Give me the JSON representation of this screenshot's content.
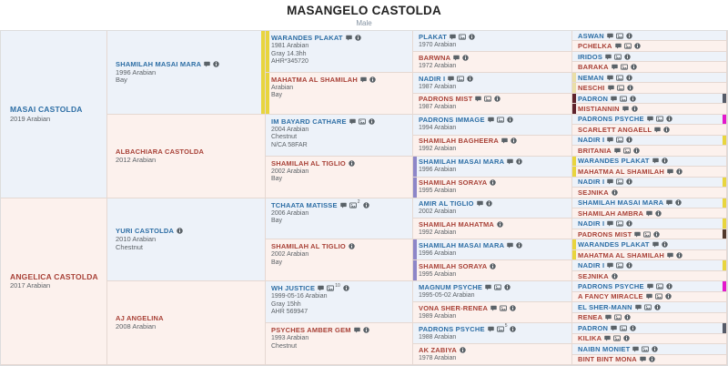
{
  "header": {
    "title": "MASANGELO CASTOLDA",
    "subtitle": "Male"
  },
  "colors": {
    "male_bg": "#edf2f9",
    "female_bg": "#fcf1ed",
    "male_name": "#2d6ea5",
    "female_name": "#a84137",
    "detail_text": "#5b6166",
    "icon_gray": "#5a6268",
    "stripes": {
      "yellow": "#e8d53e",
      "pale_yellow": "#eadfa8",
      "purple": "#8d86c8",
      "maroon": "#5e222b",
      "dark_gray": "#565b68",
      "dark_brown": "#53392b",
      "magenta": "#e318cc"
    }
  },
  "pedigree": {
    "columns": [
      {
        "generation": 1,
        "cells": [
          {
            "name": "MASAI CASTOLDA",
            "sex": "m",
            "details": [
              "2019 Arabian"
            ],
            "icons": []
          },
          {
            "name": "ANGELICA CASTOLDA",
            "sex": "f",
            "details": [
              "2017 Arabian"
            ],
            "icons": []
          }
        ]
      },
      {
        "generation": 2,
        "cells": [
          {
            "name": "SHAMILAH MASAI MARA",
            "sex": "m",
            "details": [
              "1996 Arabian",
              "Bay"
            ],
            "icons": [
              "chat",
              "info"
            ],
            "stripe_right": "yellow"
          },
          {
            "name": "ALBACHIARA CASTOLDA",
            "sex": "f",
            "details": [
              "2012 Arabian"
            ],
            "icons": []
          },
          {
            "name": "YURI CASTOLDA",
            "sex": "m",
            "details": [
              "2010 Arabian",
              "Chestnut"
            ],
            "icons": [
              "info"
            ]
          },
          {
            "name": "AJ ANGELINA",
            "sex": "f",
            "details": [
              "2008 Arabian"
            ],
            "icons": []
          }
        ]
      },
      {
        "generation": 3,
        "cells": [
          {
            "name": "WARANDES PLAKAT",
            "sex": "m",
            "details": [
              "1981 Arabian",
              "Gray 14.3hh",
              "AHR*345720"
            ],
            "icons": [
              "chat",
              "info"
            ],
            "stripe_left": "yellow"
          },
          {
            "name": "MAHATMA AL SHAMILAH",
            "sex": "f",
            "details": [
              "Arabian",
              "Bay"
            ],
            "icons": [
              "chat",
              "info"
            ],
            "stripe_left": "yellow"
          },
          {
            "name": "IM BAYARD CATHARE",
            "sex": "m",
            "details": [
              "2004 Arabian",
              "Chestnut",
              "N/CA 58FAR"
            ],
            "icons": [
              "chat",
              "image",
              "info"
            ]
          },
          {
            "name": "SHAMILAH AL TIGLIO",
            "sex": "f",
            "details": [
              "2002 Arabian",
              "Bay"
            ],
            "icons": [
              "info"
            ]
          },
          {
            "name": "TCHAATA MATISSE",
            "sex": "m",
            "details": [
              "2006 Arabian",
              "Bay"
            ],
            "icons": [
              "chat",
              "image",
              "info"
            ],
            "image_sup": "2"
          },
          {
            "name": "SHAMILAH AL TIGLIO",
            "sex": "f",
            "details": [
              "2002 Arabian",
              "Bay"
            ],
            "icons": [
              "info"
            ]
          },
          {
            "name": "WH JUSTICE",
            "sex": "m",
            "details": [
              "1999-05-16 Arabian",
              "Gray 15hh",
              "AHR 569947"
            ],
            "icons": [
              "chat",
              "image",
              "info"
            ],
            "image_sup": "10"
          },
          {
            "name": "PSYCHES AMBER GEM",
            "sex": "f",
            "details": [
              "1993 Arabian",
              "Chestnut"
            ],
            "icons": [
              "chat",
              "info"
            ]
          }
        ]
      },
      {
        "generation": 4,
        "cells": [
          {
            "name": "PLAKAT",
            "sex": "m",
            "details": [
              "1970 Arabian"
            ],
            "icons": [
              "chat",
              "image",
              "info"
            ]
          },
          {
            "name": "BARWNA",
            "sex": "f",
            "details": [
              "1972 Arabian"
            ],
            "icons": [
              "chat",
              "info"
            ]
          },
          {
            "name": "NADIR I",
            "sex": "m",
            "details": [
              "1987 Arabian"
            ],
            "icons": [
              "chat",
              "image",
              "info"
            ]
          },
          {
            "name": "PADRONS MIST",
            "sex": "f",
            "details": [
              "1987 Arabian"
            ],
            "icons": [
              "chat",
              "image",
              "info"
            ]
          },
          {
            "name": "PADRONS IMMAGE",
            "sex": "m",
            "details": [
              "1994 Arabian"
            ],
            "icons": [
              "chat",
              "image",
              "info"
            ]
          },
          {
            "name": "SHAMILAH BAGHEERA",
            "sex": "f",
            "details": [
              "1992 Arabian"
            ],
            "icons": [
              "chat",
              "info"
            ]
          },
          {
            "name": "SHAMILAH MASAI MARA",
            "sex": "m",
            "details": [
              "1996 Arabian"
            ],
            "icons": [
              "chat",
              "info"
            ],
            "stripe_left": "purple"
          },
          {
            "name": "SHAMILAH SORAYA",
            "sex": "f",
            "details": [
              "1995 Arabian"
            ],
            "icons": [
              "info"
            ],
            "stripe_left": "purple"
          },
          {
            "name": "AMIR AL TIGLIO",
            "sex": "m",
            "details": [
              "2002 Arabian"
            ],
            "icons": [
              "chat",
              "info"
            ]
          },
          {
            "name": "SHAMILAH MAHATMA",
            "sex": "f",
            "details": [
              "1992 Arabian"
            ],
            "icons": [
              "info"
            ]
          },
          {
            "name": "SHAMILAH MASAI MARA",
            "sex": "m",
            "details": [
              "1996 Arabian"
            ],
            "icons": [
              "chat",
              "info"
            ],
            "stripe_left": "purple"
          },
          {
            "name": "SHAMILAH SORAYA",
            "sex": "f",
            "details": [
              "1995 Arabian"
            ],
            "icons": [
              "info"
            ],
            "stripe_left": "purple"
          },
          {
            "name": "MAGNUM PSYCHE",
            "sex": "m",
            "details": [
              "1995-05-02 Arabian"
            ],
            "icons": [
              "chat",
              "image",
              "info"
            ]
          },
          {
            "name": "VONA SHER-RENEA",
            "sex": "f",
            "details": [
              "1989 Arabian"
            ],
            "icons": [
              "chat",
              "image",
              "info"
            ]
          },
          {
            "name": "PADRONS PSYCHE",
            "sex": "m",
            "details": [
              "1988 Arabian"
            ],
            "icons": [
              "chat",
              "image",
              "info"
            ],
            "image_sup": "5"
          },
          {
            "name": "AK ZABIYA",
            "sex": "f",
            "details": [
              "1978 Arabian"
            ],
            "icons": [
              "info"
            ]
          }
        ]
      },
      {
        "generation": 5,
        "cells": [
          {
            "name": "ASWAN",
            "sex": "m",
            "details": [],
            "icons": [
              "chat",
              "image",
              "info"
            ]
          },
          {
            "name": "PCHELKA",
            "sex": "f",
            "details": [],
            "icons": [
              "chat",
              "image",
              "info"
            ]
          },
          {
            "name": "IRIDOS",
            "sex": "m",
            "details": [],
            "icons": [
              "chat",
              "image",
              "info"
            ]
          },
          {
            "name": "BARAKA",
            "sex": "f",
            "details": [],
            "icons": [
              "chat",
              "image",
              "info"
            ]
          },
          {
            "name": "NEMAN",
            "sex": "m",
            "details": [],
            "icons": [
              "chat",
              "image",
              "info"
            ],
            "stripe_left": "pale_yellow"
          },
          {
            "name": "NESCHI",
            "sex": "f",
            "details": [],
            "icons": [
              "chat",
              "image",
              "info"
            ],
            "stripe_left": "pale_yellow"
          },
          {
            "name": "PADRON",
            "sex": "m",
            "details": [],
            "icons": [
              "chat",
              "image",
              "info"
            ],
            "stripe_left": "maroon",
            "stripe_right": "dark_gray"
          },
          {
            "name": "MISTIANNIN",
            "sex": "f",
            "details": [],
            "icons": [
              "chat",
              "info"
            ],
            "stripe_left": "maroon"
          },
          {
            "name": "PADRONS PSYCHE",
            "sex": "m",
            "details": [],
            "icons": [
              "chat",
              "image",
              "info"
            ],
            "stripe_right": "magenta"
          },
          {
            "name": "SCARLETT ANGAELL",
            "sex": "f",
            "details": [],
            "icons": [
              "chat",
              "info"
            ]
          },
          {
            "name": "NADIR I",
            "sex": "m",
            "details": [],
            "icons": [
              "chat",
              "image",
              "info"
            ],
            "stripe_right": "yellow"
          },
          {
            "name": "BRITANIA",
            "sex": "f",
            "details": [],
            "icons": [
              "chat",
              "image",
              "info"
            ]
          },
          {
            "name": "WARANDES PLAKAT",
            "sex": "m",
            "details": [],
            "icons": [
              "chat",
              "info"
            ],
            "stripe_left": "yellow"
          },
          {
            "name": "MAHATMA AL SHAMILAH",
            "sex": "f",
            "details": [],
            "icons": [
              "chat",
              "info"
            ],
            "stripe_left": "yellow"
          },
          {
            "name": "NADIR I",
            "sex": "m",
            "details": [],
            "icons": [
              "chat",
              "image",
              "info"
            ],
            "stripe_right": "yellow"
          },
          {
            "name": "SEJNIKA",
            "sex": "f",
            "details": [],
            "icons": [
              "info"
            ]
          },
          {
            "name": "SHAMILAH MASAI MARA",
            "sex": "m",
            "details": [],
            "icons": [
              "chat",
              "info"
            ],
            "stripe_right": "yellow"
          },
          {
            "name": "SHAMILAH AMBRA",
            "sex": "f",
            "details": [],
            "icons": [
              "chat",
              "info"
            ]
          },
          {
            "name": "NADIR I",
            "sex": "m",
            "details": [],
            "icons": [
              "chat",
              "image",
              "info"
            ],
            "stripe_right": "yellow"
          },
          {
            "name": "PADRONS MIST",
            "sex": "f",
            "details": [],
            "icons": [
              "chat",
              "image",
              "info"
            ],
            "stripe_right": "dark_brown"
          },
          {
            "name": "WARANDES PLAKAT",
            "sex": "m",
            "details": [],
            "icons": [
              "chat",
              "info"
            ],
            "stripe_left": "yellow"
          },
          {
            "name": "MAHATMA AL SHAMILAH",
            "sex": "f",
            "details": [],
            "icons": [
              "chat",
              "info"
            ],
            "stripe_left": "yellow"
          },
          {
            "name": "NADIR I",
            "sex": "m",
            "details": [],
            "icons": [
              "chat",
              "image",
              "info"
            ],
            "stripe_right": "yellow"
          },
          {
            "name": "SEJNIKA",
            "sex": "f",
            "details": [],
            "icons": [
              "info"
            ]
          },
          {
            "name": "PADRONS PSYCHE",
            "sex": "m",
            "details": [],
            "icons": [
              "chat",
              "image",
              "info"
            ],
            "stripe_right": "magenta"
          },
          {
            "name": "A FANCY MIRACLE",
            "sex": "f",
            "details": [],
            "icons": [
              "chat",
              "image",
              "info"
            ]
          },
          {
            "name": "EL SHER-MANN",
            "sex": "m",
            "details": [],
            "icons": [
              "chat",
              "image",
              "info"
            ]
          },
          {
            "name": "RENEA",
            "sex": "f",
            "details": [],
            "icons": [
              "chat",
              "image",
              "info"
            ]
          },
          {
            "name": "PADRON",
            "sex": "m",
            "details": [],
            "icons": [
              "chat",
              "image",
              "info"
            ],
            "stripe_right": "dark_gray"
          },
          {
            "name": "KILIKA",
            "sex": "f",
            "details": [],
            "icons": [
              "chat",
              "image",
              "info"
            ]
          },
          {
            "name": "NAIBN MONIET",
            "sex": "m",
            "details": [],
            "icons": [
              "chat",
              "image",
              "info"
            ]
          },
          {
            "name": "BINT BINT MONA",
            "sex": "f",
            "details": [],
            "icons": [
              "chat",
              "info"
            ]
          }
        ]
      }
    ]
  }
}
